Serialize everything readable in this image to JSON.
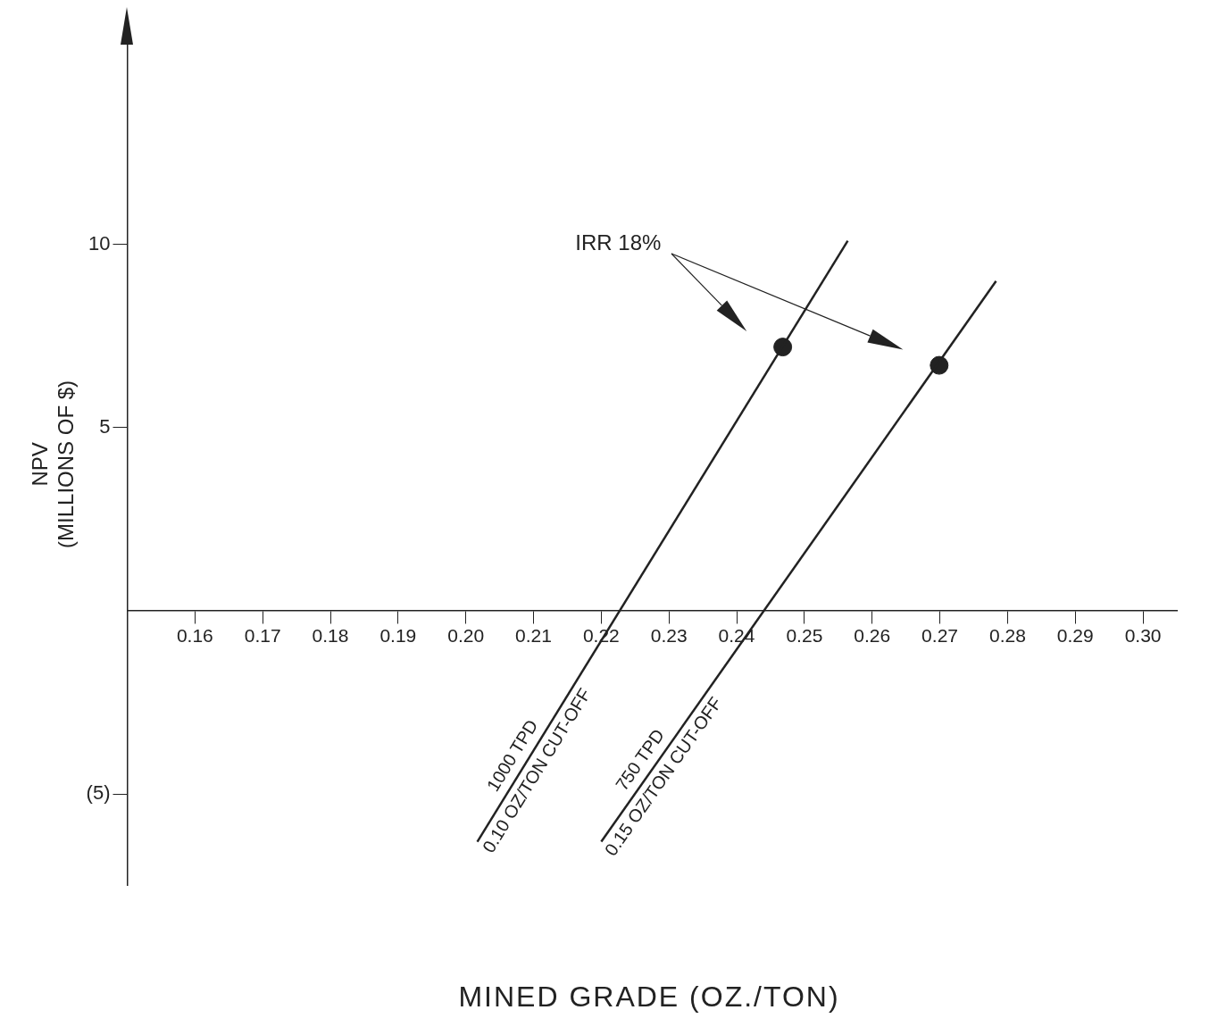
{
  "chart_data": {
    "type": "line",
    "xlabel": "MINED GRADE (OZ./TON)",
    "ylabel": "NPV\n(MILLIONS OF $)",
    "xlim": [
      0.15,
      0.305
    ],
    "ylim": [
      -7.5,
      15.5
    ],
    "xticks": [
      0.16,
      0.17,
      0.18,
      0.19,
      {
        "value": 0.2,
        "label": "0.20"
      },
      0.21,
      0.22,
      0.23,
      0.24,
      0.25,
      0.26,
      0.27,
      0.28,
      0.29,
      {
        "value": 0.3,
        "label": "0.30"
      }
    ],
    "yticks": [
      {
        "value": -5,
        "label": "(5)"
      },
      5,
      10
    ],
    "grid": false,
    "legend": false,
    "marker": "none",
    "line_style": "solid",
    "annotations": [
      "IRR 18%"
    ],
    "series": [
      {
        "name": "1000 TPD\n0.10 OZ/TON CUT-OFF",
        "color": "#222222",
        "x": [
          0.2017,
          0.2564
        ],
        "values": [
          -6.3,
          10.1
        ]
      },
      {
        "name": "750 TPD\n0.15 OZ/TON CUT-OFF",
        "color": "#222222",
        "x": [
          0.22,
          0.2783
        ],
        "values": [
          -6.3,
          9.0
        ]
      },
      {
        "type": "scatter",
        "marker": "circle",
        "color": "#222222",
        "x": [
          0.2468,
          0.2699
        ],
        "values": [
          7.2,
          6.7
        ]
      }
    ]
  }
}
